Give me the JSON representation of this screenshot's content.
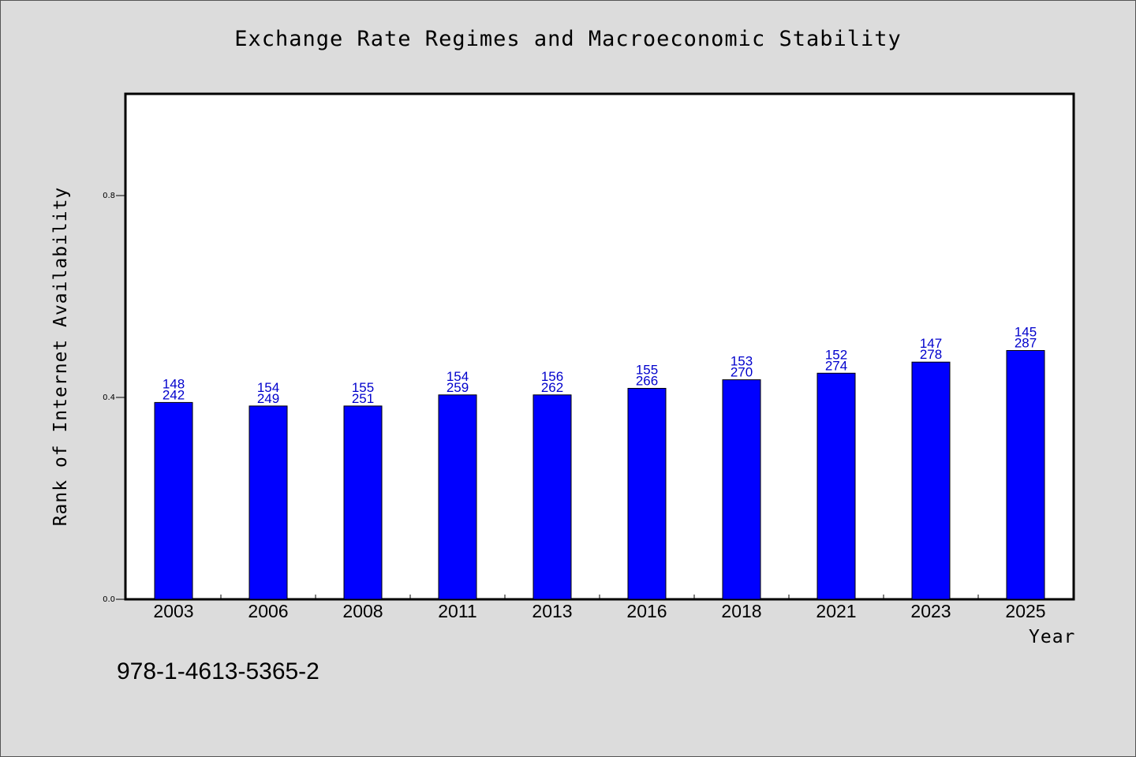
{
  "chart_data": {
    "type": "bar",
    "title": "Exchange Rate Regimes and Macroeconomic Stability",
    "xlabel": "Year",
    "ylabel": "Rank of Internet Availability",
    "categories": [
      "2003",
      "2006",
      "2008",
      "2011",
      "2013",
      "2016",
      "2018",
      "2021",
      "2023",
      "2025"
    ],
    "values": [
      0.39,
      0.383,
      0.383,
      0.405,
      0.405,
      0.418,
      0.435,
      0.448,
      0.47,
      0.493
    ],
    "bar_labels_top": [
      "148",
      "154",
      "155",
      "154",
      "156",
      "155",
      "153",
      "152",
      "147",
      "145"
    ],
    "bar_labels_bottom": [
      "242",
      "249",
      "251",
      "259",
      "262",
      "266",
      "270",
      "274",
      "278",
      "287"
    ],
    "yticks": [
      "0.0",
      "0.4",
      "0.8"
    ],
    "ylim": [
      0,
      1.0
    ],
    "grid": false,
    "legend": "none",
    "colors": {
      "bar_fill": "#0000ff",
      "bar_stroke": "#000000",
      "bar_label": "#0000cc",
      "plot_background": "#ffffff",
      "page_background": "#dcdcdc"
    }
  },
  "footnote": "978-1-4613-5365-2"
}
